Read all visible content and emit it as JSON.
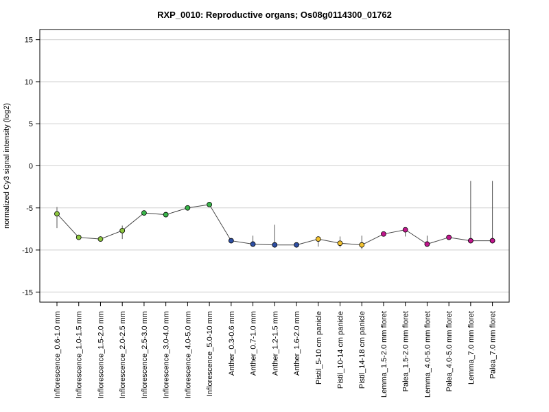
{
  "chart_data": {
    "type": "line",
    "title": "RXP_0010: Reproductive organs; Os08g0114300_01762",
    "xlabel": "",
    "ylabel": "normalized Cy3 signal intensity (log2)",
    "ylim": [
      -16.2,
      16.2
    ],
    "yticks": [
      15,
      10,
      5,
      0,
      -5,
      -10,
      -15
    ],
    "ytick_labels": [
      "15",
      "10",
      "5",
      "0",
      "-5",
      "-10",
      "-15"
    ],
    "grid": "horizontal",
    "categories": [
      "Inflorescence_0.6-1.0 mm",
      "Inflorescence_1.0-1.5 mm",
      "Inflorescence_1.5-2.0 mm",
      "Inflorescence_2.0-2.5 mm",
      "Inflorescence_2.5-3.0 mm",
      "Inflorescence_3.0-4.0 mm",
      "Inflorescence_4.0-5.0 mm",
      "Inflorescence_5.0-10 mm",
      "Anther_0.3-0.6 mm",
      "Anther_0.7-1.0 mm",
      "Anther_1.2-1.5 mm",
      "Anther_1.6-2.0 mm",
      "Pistil_5-10 cm panicle",
      "Pistil_10-14 cm panicle",
      "Pistil_14-18 cm panicle",
      "Lemma_1.5-2.0 mm floret",
      "Palea_1.5-2.0 mm floret",
      "Lemma_4.0-5.0 mm floret",
      "Palea_4.0-5.0 mm floret",
      "Lemma_7.0 mm floret",
      "Palea_7.0 mm floret"
    ],
    "series": [
      {
        "values": [
          -5.7,
          -8.5,
          -8.7,
          -7.7,
          -5.6,
          -5.8,
          -5.0,
          -4.6,
          -8.9,
          -9.3,
          -9.4,
          -9.4,
          -8.7,
          -9.2,
          -9.4,
          -8.1,
          -7.6,
          -9.3,
          -8.5,
          -8.9,
          -8.9
        ],
        "err_low": [
          -7.4,
          -8.6,
          -9.0,
          -8.7,
          -5.7,
          -5.9,
          -5.1,
          -4.7,
          -9.1,
          -9.6,
          -9.6,
          -9.5,
          -9.6,
          -9.7,
          -9.9,
          -8.2,
          -8.4,
          -9.6,
          -8.8,
          -9.1,
          -9.2
        ],
        "err_high": [
          -4.9,
          -8.3,
          -8.4,
          -7.1,
          -5.4,
          -5.7,
          -4.9,
          -4.5,
          -8.8,
          -8.3,
          -7.0,
          -9.3,
          -8.6,
          -8.4,
          -8.3,
          -8.0,
          -7.5,
          -8.3,
          -8.3,
          -1.8,
          -1.8
        ],
        "colors": [
          "#8dc63f",
          "#8dc63f",
          "#8dc63f",
          "#8dc63f",
          "#39b54a",
          "#39b54a",
          "#39b54a",
          "#39b54a",
          "#2e4fa3",
          "#2e4fa3",
          "#2e4fa3",
          "#2e4fa3",
          "#f2c230",
          "#f2c230",
          "#f2c230",
          "#c0168c",
          "#c0168c",
          "#c0168c",
          "#c0168c",
          "#c0168c",
          "#c0168c"
        ]
      }
    ]
  }
}
